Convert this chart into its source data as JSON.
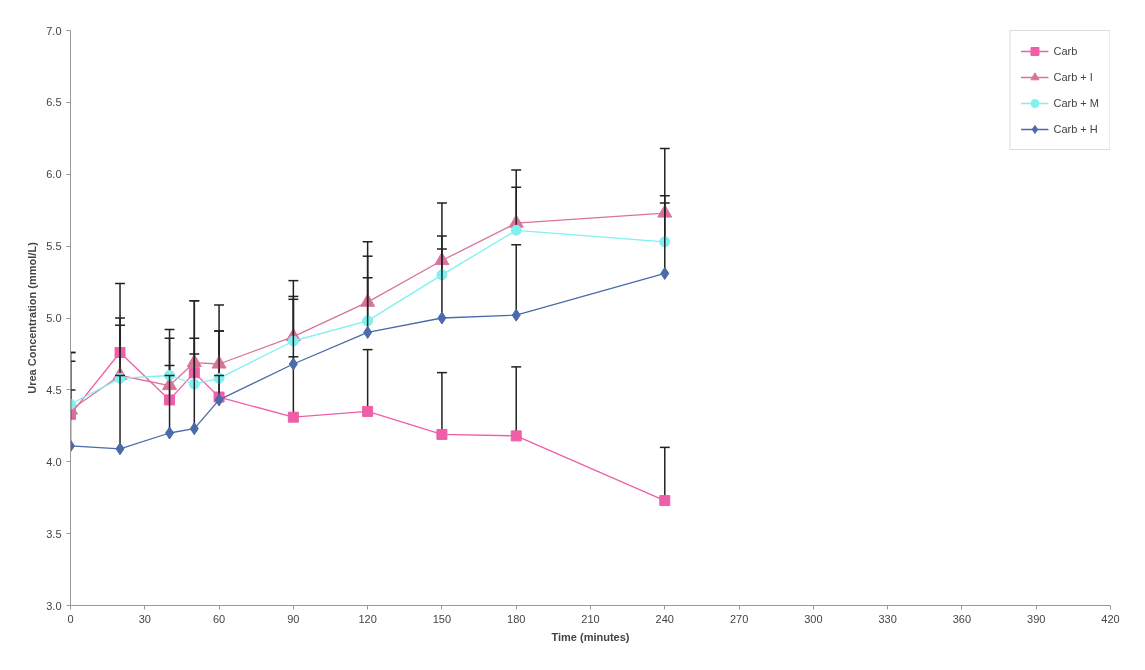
{
  "chart_data": {
    "type": "line",
    "xlabel": "Time (minutes)",
    "ylabel": "Urea Concentration (mmol/L)",
    "x": [
      0,
      20,
      40,
      50,
      60,
      90,
      120,
      150,
      180,
      240
    ],
    "xlim": [
      0,
      420
    ],
    "xticks": [
      0,
      30,
      60,
      90,
      120,
      150,
      180,
      210,
      240,
      270,
      300,
      330,
      360,
      390,
      420
    ],
    "ylim": [
      3.0,
      7.0
    ],
    "yticks": [
      {
        "value": 3.0,
        "label": "3.0"
      },
      {
        "value": 3.5,
        "label": "3.5"
      },
      {
        "value": 4.0,
        "label": "4.0"
      },
      {
        "value": 4.5,
        "label": "4.5"
      },
      {
        "value": 5.0,
        "label": "5.0"
      },
      {
        "value": 5.5,
        "label": "5.5"
      },
      {
        "value": 6.0,
        "label": "6.0"
      },
      {
        "value": 6.5,
        "label": "6.5"
      },
      {
        "value": 7.0,
        "label": "7.0"
      }
    ],
    "grid": false,
    "legend": "top right",
    "line_style": "solid",
    "series": [
      {
        "name": "Carb",
        "color": "#ee5fa7",
        "marker": "square",
        "values": [
          4.33,
          4.76,
          4.43,
          4.62,
          4.45,
          4.31,
          4.35,
          4.19,
          4.18,
          3.73
        ],
        "errors": [
          [
            4.33,
            4.76
          ],
          [
            4.76,
            5.24
          ],
          [
            4.43,
            4.92
          ],
          [
            4.62,
            5.12
          ],
          [
            4.45,
            5.09
          ],
          [
            4.31,
            4.73
          ],
          [
            4.35,
            4.78
          ],
          [
            4.19,
            4.62
          ],
          [
            4.18,
            4.66
          ],
          [
            3.73,
            4.1
          ]
        ]
      },
      {
        "name": "Carb + I",
        "color": "#d9739a",
        "marker": "triangle",
        "values": [
          4.36,
          4.6,
          4.53,
          4.69,
          4.68,
          4.87,
          5.11,
          5.4,
          5.66,
          5.73
        ],
        "errors": [
          [
            4.36,
            4.76
          ],
          [
            4.6,
            5.0
          ],
          [
            4.53,
            4.86
          ],
          [
            4.69,
            5.12
          ],
          [
            4.68,
            4.91
          ],
          [
            4.87,
            5.26
          ],
          [
            5.11,
            5.53
          ],
          [
            5.4,
            5.8
          ],
          [
            5.66,
            6.03
          ],
          [
            5.73,
            6.18
          ]
        ]
      },
      {
        "name": "Carb + M",
        "color": "#80f0f0",
        "marker": "circle",
        "values": [
          4.4,
          4.58,
          4.6,
          4.54,
          4.58,
          4.84,
          4.98,
          5.3,
          5.61,
          5.53
        ],
        "errors": [
          [
            4.4,
            4.7
          ],
          [
            4.58,
            4.95
          ],
          [
            4.6,
            4.67
          ],
          [
            4.54,
            4.86
          ],
          [
            4.58,
            4.91
          ],
          [
            4.84,
            5.15
          ],
          [
            4.98,
            5.43
          ],
          [
            5.3,
            5.57
          ],
          [
            5.61,
            5.91
          ],
          [
            5.53,
            5.85
          ]
        ]
      },
      {
        "name": "Carb + H",
        "color": "#4a6aaa",
        "marker": "diamond",
        "values": [
          4.11,
          4.09,
          4.2,
          4.23,
          4.43,
          4.68,
          4.9,
          5.0,
          5.02,
          5.31
        ],
        "errors": [
          [
            4.11,
            4.5
          ],
          [
            4.09,
            4.6
          ],
          [
            4.2,
            4.6
          ],
          [
            4.23,
            4.75
          ],
          [
            4.43,
            4.6
          ],
          [
            4.68,
            5.13
          ],
          [
            4.9,
            5.28
          ],
          [
            5.0,
            5.48
          ],
          [
            5.02,
            5.51
          ],
          [
            5.31,
            5.8
          ]
        ]
      }
    ]
  }
}
